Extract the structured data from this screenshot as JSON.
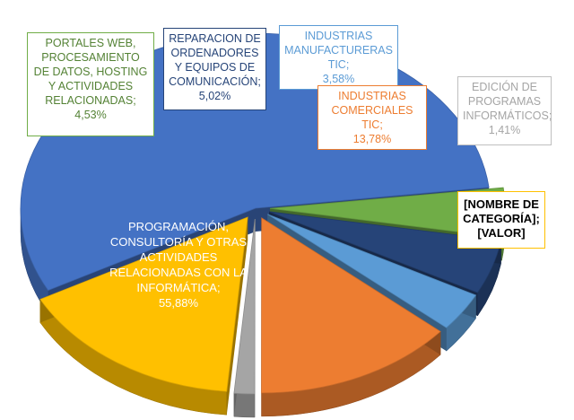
{
  "chart_data": {
    "type": "pie",
    "style": "3d-exploded",
    "slices": [
      {
        "label": "PROGRAMACIÓN, CONSULTORÍA Y OTRAS ACTIVIDADES RELACIONADAS CON LA INFORMÁTICA;",
        "value_text": "55,88%",
        "value": 55.88,
        "color": "#4472c4",
        "label_color": "#ffffff",
        "border_color": "#ffffff"
      },
      {
        "label": "PORTALES WEB, PROCESAMIENTO DE DATOS, HOSTING Y ACTIVIDADES RELACIONADAS;",
        "value_text": "4,53%",
        "value": 4.53,
        "color": "#70ad47",
        "label_color": "#548235",
        "border_color": "#70ad47"
      },
      {
        "label": "REPARACION DE ORDENADORES Y EQUIPOS DE COMUNICACIÓN;",
        "value_text": "5,02%",
        "value": 5.02,
        "color": "#264478",
        "label_color": "#264478",
        "border_color": "#264478"
      },
      {
        "label": "INDUSTRIAS MANUFACTURERAS TIC;",
        "value_text": "3,58%",
        "value": 3.58,
        "color": "#5b9bd5",
        "label_color": "#5b9bd5",
        "border_color": "#5b9bd5"
      },
      {
        "label": "INDUSTRIAS COMERCIALES TIC;",
        "value_text": "13,78%",
        "value": 13.78,
        "color": "#ed7d31",
        "label_color": "#ed7d31",
        "border_color": "#ed7d31"
      },
      {
        "label": "EDICIÓN DE PROGRAMAS INFORMÁTICOS;",
        "value_text": "1,41%",
        "value": 1.41,
        "color": "#a5a5a5",
        "label_color": "#a5a5a5",
        "border_color": "#bfbfbf"
      },
      {
        "label": "[NOMBRE DE CATEGORÍA];",
        "value_text": "[VALOR]",
        "value": 15.8,
        "color": "#ffc000",
        "label_color": "#000000",
        "border_color": "#ffc000"
      }
    ]
  }
}
